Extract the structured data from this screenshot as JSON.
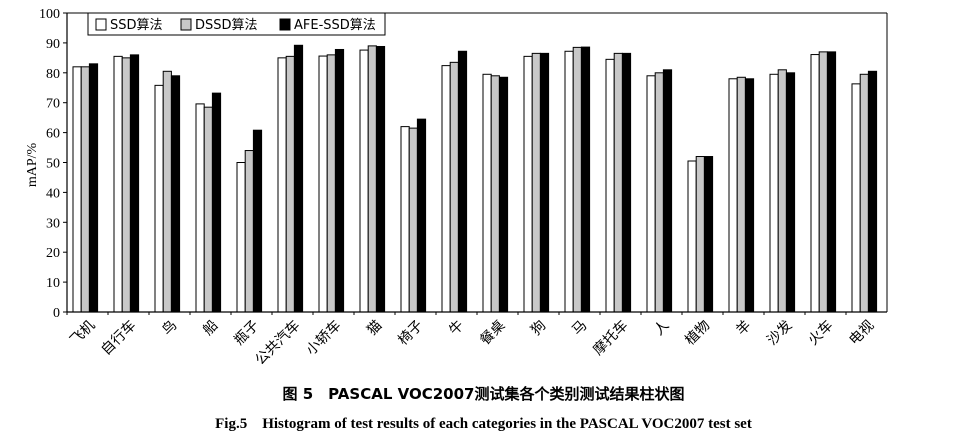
{
  "chart_data": {
    "type": "bar",
    "ylabel": "mAP/%",
    "ylim": [
      0,
      100
    ],
    "yticks": [
      "0",
      "10",
      "20",
      "30",
      "40",
      "50",
      "60",
      "70",
      "80",
      "90",
      "100"
    ],
    "legend_position": "top-left",
    "grid": false,
    "categories": [
      "飞机",
      "自行车",
      "鸟",
      "船",
      "瓶子",
      "公共汽车",
      "小轿车",
      "猫",
      "椅子",
      "牛",
      "餐桌",
      "狗",
      "马",
      "摩托车",
      "人",
      "植物",
      "羊",
      "沙发",
      "火车",
      "电视"
    ],
    "series": [
      {
        "name": "SSD算法",
        "color": "#ffffff",
        "values": [
          82.0,
          85.5,
          75.8,
          69.6,
          50.0,
          85.0,
          85.6,
          87.6,
          62.0,
          82.4,
          79.5,
          85.5,
          87.2,
          84.5,
          79.0,
          50.5,
          78.0,
          79.5,
          86.1,
          76.3
        ]
      },
      {
        "name": "DSSD算法",
        "color": "#c8c8c8",
        "values": [
          82.0,
          85.0,
          80.5,
          68.5,
          54.0,
          85.5,
          86.0,
          89.0,
          61.5,
          83.5,
          79.0,
          86.5,
          88.5,
          86.5,
          80.0,
          52.0,
          78.5,
          81.0,
          87.0,
          79.5
        ]
      },
      {
        "name": "AFE-SSD算法",
        "color": "#000000",
        "values": [
          83.0,
          86.0,
          79.0,
          73.2,
          60.8,
          89.2,
          87.8,
          88.8,
          64.5,
          87.2,
          78.5,
          86.5,
          88.6,
          86.5,
          81.0,
          52.0,
          78.0,
          80.0,
          87.0,
          80.5
        ]
      }
    ]
  },
  "caption": {
    "cn": "图 5　PASCAL VOC2007测试集各个类别测试结果柱状图",
    "en": "Fig.5　Histogram of test results of each categories in the PASCAL VOC2007 test set"
  }
}
